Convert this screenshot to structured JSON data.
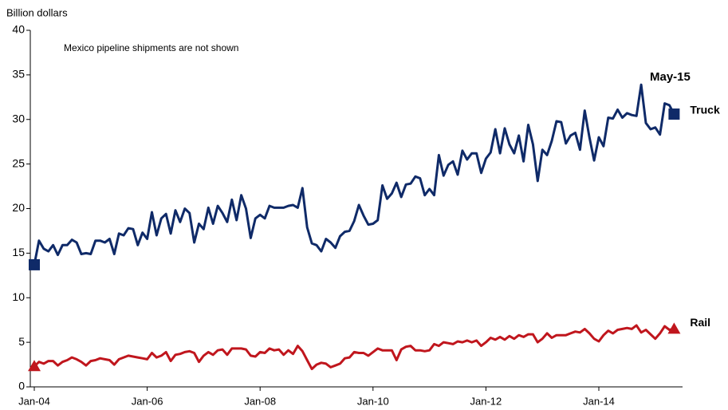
{
  "chart_data": {
    "type": "line",
    "y_label": "Billion dollars",
    "note": "Mexico pipeline shipments are not shown",
    "annotation": "May-15",
    "categories": [
      "Jan-04",
      null,
      null,
      null,
      null,
      null,
      null,
      null,
      null,
      null,
      null,
      null,
      null,
      null,
      null,
      null,
      null,
      null,
      null,
      null,
      null,
      null,
      null,
      null,
      "Jan-06",
      null,
      null,
      null,
      null,
      null,
      null,
      null,
      null,
      null,
      null,
      null,
      null,
      null,
      null,
      null,
      null,
      null,
      null,
      null,
      null,
      null,
      null,
      null,
      "Jan-08",
      null,
      null,
      null,
      null,
      null,
      null,
      null,
      null,
      null,
      null,
      null,
      null,
      null,
      null,
      null,
      null,
      null,
      null,
      null,
      null,
      null,
      null,
      null,
      "Jan-10",
      null,
      null,
      null,
      null,
      null,
      null,
      null,
      null,
      null,
      null,
      null,
      null,
      null,
      null,
      null,
      null,
      null,
      null,
      null,
      null,
      null,
      null,
      null,
      "Jan-12",
      null,
      null,
      null,
      null,
      null,
      null,
      null,
      null,
      null,
      null,
      null,
      null,
      null,
      null,
      null,
      null,
      null,
      null,
      null,
      null,
      null,
      null,
      null,
      "Jan-14",
      null,
      null,
      null,
      null,
      null,
      null,
      null,
      null,
      null,
      null,
      null,
      null,
      null,
      null,
      null,
      null
    ],
    "series": [
      {
        "name": "Truck",
        "color": "#0f2a68",
        "marker": "square",
        "values": [
          13.7,
          16.4,
          15.5,
          15.2,
          15.9,
          14.8,
          15.9,
          15.9,
          16.5,
          16.2,
          14.9,
          15.0,
          14.9,
          16.4,
          16.4,
          16.2,
          16.6,
          14.9,
          17.2,
          17.0,
          17.8,
          17.7,
          15.9,
          17.3,
          16.6,
          19.6,
          17.0,
          18.9,
          19.4,
          17.2,
          19.8,
          18.5,
          20.0,
          19.5,
          16.2,
          18.3,
          17.7,
          20.1,
          18.3,
          20.3,
          19.5,
          18.5,
          21.0,
          18.7,
          21.5,
          20.0,
          16.7,
          18.9,
          19.3,
          18.9,
          20.3,
          20.1,
          20.1,
          20.1,
          20.3,
          20.4,
          20.1,
          22.3,
          17.9,
          16.1,
          15.9,
          15.2,
          16.6,
          16.2,
          15.6,
          16.9,
          17.4,
          17.5,
          18.6,
          20.4,
          19.2,
          18.2,
          18.3,
          18.7,
          22.6,
          21.1,
          21.7,
          22.9,
          21.3,
          22.7,
          22.8,
          23.6,
          23.4,
          21.5,
          22.2,
          21.5,
          26.0,
          23.7,
          24.9,
          25.3,
          23.8,
          26.5,
          25.5,
          26.2,
          26.2,
          24.0,
          25.6,
          26.3,
          28.9,
          26.2,
          29.0,
          27.2,
          26.2,
          28.2,
          25.3,
          29.4,
          27.2,
          23.1,
          26.6,
          26.0,
          27.6,
          29.8,
          29.7,
          27.3,
          28.2,
          28.5,
          26.6,
          31.0,
          28.0,
          25.4,
          28.0,
          27.0,
          30.2,
          30.1,
          31.1,
          30.2,
          30.7,
          30.5,
          30.4,
          33.9,
          29.6,
          28.9,
          29.1,
          28.3,
          31.8,
          31.6,
          30.6
        ]
      },
      {
        "name": "Rail",
        "color": "#c0161d",
        "marker": "triangle",
        "values": [
          2.3,
          2.8,
          2.6,
          2.9,
          2.9,
          2.4,
          2.8,
          3.0,
          3.3,
          3.1,
          2.8,
          2.4,
          2.9,
          3.0,
          3.2,
          3.1,
          3.0,
          2.5,
          3.1,
          3.3,
          3.5,
          3.4,
          3.3,
          3.2,
          3.1,
          3.8,
          3.3,
          3.5,
          3.9,
          2.9,
          3.6,
          3.7,
          3.9,
          4.0,
          3.8,
          2.8,
          3.5,
          3.9,
          3.6,
          4.1,
          4.2,
          3.6,
          4.3,
          4.3,
          4.3,
          4.2,
          3.5,
          3.4,
          3.9,
          3.8,
          4.3,
          4.1,
          4.2,
          3.6,
          4.1,
          3.7,
          4.6,
          4.0,
          3.0,
          2.0,
          2.5,
          2.7,
          2.6,
          2.2,
          2.4,
          2.6,
          3.2,
          3.3,
          3.9,
          3.8,
          3.8,
          3.5,
          3.9,
          4.3,
          4.1,
          4.1,
          4.1,
          3.0,
          4.2,
          4.5,
          4.6,
          4.1,
          4.1,
          4.0,
          4.1,
          4.8,
          4.6,
          5.0,
          4.9,
          4.8,
          5.1,
          5.0,
          5.2,
          5.0,
          5.2,
          4.6,
          5.0,
          5.5,
          5.3,
          5.6,
          5.3,
          5.7,
          5.4,
          5.8,
          5.6,
          5.9,
          5.9,
          5.0,
          5.4,
          6.0,
          5.5,
          5.8,
          5.8,
          5.8,
          6.0,
          6.2,
          6.1,
          6.5,
          6.0,
          5.4,
          5.1,
          5.8,
          6.3,
          6.0,
          6.4,
          6.5,
          6.6,
          6.5,
          6.9,
          6.1,
          6.4,
          5.9,
          5.4,
          6.0,
          6.8,
          6.4,
          6.5
        ]
      }
    ],
    "ylim": [
      0,
      40
    ],
    "yticks": [
      0,
      5,
      10,
      15,
      20,
      25,
      30,
      35,
      40
    ]
  }
}
